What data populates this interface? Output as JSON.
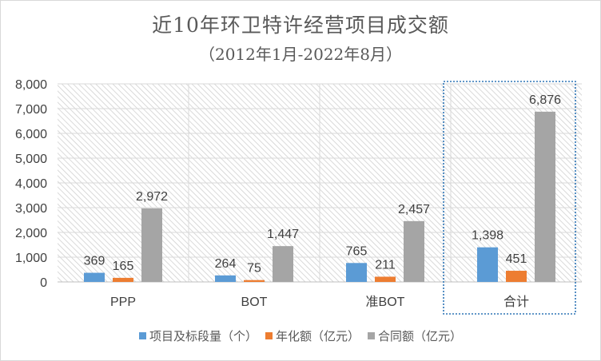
{
  "chart_data": {
    "type": "bar",
    "title": "近10年环卫特许经营项目成交额",
    "subtitle": "（2012年1月-2022年8月）",
    "categories": [
      "PPP",
      "BOT",
      "准BOT",
      "合计"
    ],
    "series": [
      {
        "name": "项目及标段量（个）",
        "values": [
          369,
          264,
          765,
          1398
        ],
        "labels": [
          "369",
          "264",
          "765",
          "1,398"
        ],
        "color": "#5b9bd5"
      },
      {
        "name": "年化额（亿元）",
        "values": [
          165,
          75,
          211,
          451
        ],
        "labels": [
          "165",
          "75",
          "211",
          "451"
        ],
        "color": "#ed7d31"
      },
      {
        "name": "合同额（亿元）",
        "values": [
          2972,
          1447,
          2457,
          6876
        ],
        "labels": [
          "2,972",
          "1,447",
          "2,457",
          "6,876"
        ],
        "color": "#a5a5a5"
      }
    ],
    "ylim": [
      0,
      8000
    ],
    "yticks": [
      0,
      1000,
      2000,
      3000,
      4000,
      5000,
      6000,
      7000,
      8000
    ],
    "ytick_labels": [
      "0",
      "1,000",
      "2,000",
      "3,000",
      "4,000",
      "5,000",
      "6,000",
      "7,000",
      "8,000"
    ],
    "grid": true,
    "legend_position": "bottom",
    "highlighted_category": "合计",
    "colors": {
      "grid": "#d9d9d9",
      "hatch": "#d0d0d0",
      "highlight_border": "#2e75b6",
      "text": "#404040"
    }
  }
}
